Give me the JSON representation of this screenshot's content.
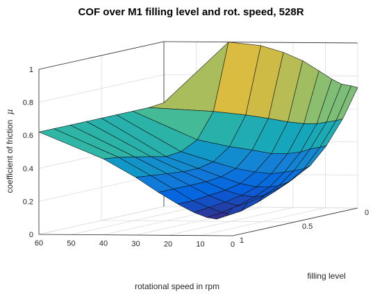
{
  "chart_data": {
    "type": "surface",
    "title": "COF over M1 filling level and rot. speed, 528R",
    "xlabel": "rotational speed in rpm",
    "ylabel": "filling level",
    "zlabel": "coefficient of friction",
    "zlabel_symbol": "μ",
    "xlim": [
      0,
      60
    ],
    "ylim": [
      0,
      1
    ],
    "zlim": [
      0,
      1
    ],
    "x_ticks": [
      "0",
      "10",
      "20",
      "30",
      "40",
      "50",
      "60"
    ],
    "y_ticks": [
      "0",
      "0.5",
      "1"
    ],
    "z_ticks": [
      "0",
      "0.2",
      "0.4",
      "0.6",
      "0.8",
      "1"
    ],
    "colormap": "parula",
    "grid": true,
    "x_speed_grid": [
      0,
      2,
      5,
      8,
      12,
      17,
      23,
      30,
      40,
      60
    ],
    "y_filling_grid": [
      0,
      0.12,
      0.25,
      0.38,
      0.5,
      0.62,
      0.75,
      0.88,
      1
    ],
    "cof_at_speed_0": [
      0.73,
      0.56,
      0.42,
      0.32,
      0.27,
      0.23,
      0.2,
      0.18,
      0.17
    ],
    "cof_at_speed_2": [
      0.74,
      0.55,
      0.41,
      0.3,
      0.24,
      0.2,
      0.16,
      0.13,
      0.12
    ],
    "cof_at_speed_5": [
      0.75,
      0.54,
      0.4,
      0.29,
      0.22,
      0.18,
      0.14,
      0.11,
      0.1
    ],
    "cof_at_speed_8": [
      0.78,
      0.53,
      0.38,
      0.28,
      0.21,
      0.17,
      0.14,
      0.12,
      0.11
    ],
    "cof_at_speed_12": [
      0.83,
      0.53,
      0.37,
      0.27,
      0.21,
      0.18,
      0.16,
      0.15,
      0.14
    ],
    "cof_at_speed_17": [
      0.89,
      0.54,
      0.37,
      0.28,
      0.23,
      0.21,
      0.2,
      0.19,
      0.19
    ],
    "cof_at_speed_23": [
      0.94,
      0.56,
      0.39,
      0.3,
      0.27,
      0.26,
      0.26,
      0.26,
      0.26
    ],
    "cof_at_speed_30": [
      0.98,
      0.58,
      0.41,
      0.34,
      0.32,
      0.32,
      0.33,
      0.34,
      0.35
    ],
    "cof_at_speed_40": [
      1.0,
      0.6,
      0.45,
      0.4,
      0.39,
      0.41,
      0.43,
      0.45,
      0.46
    ],
    "cof_at_speed_60": [
      0.63,
      0.62,
      0.62,
      0.62,
      0.62,
      0.62,
      0.62,
      0.62,
      0.62
    ]
  }
}
